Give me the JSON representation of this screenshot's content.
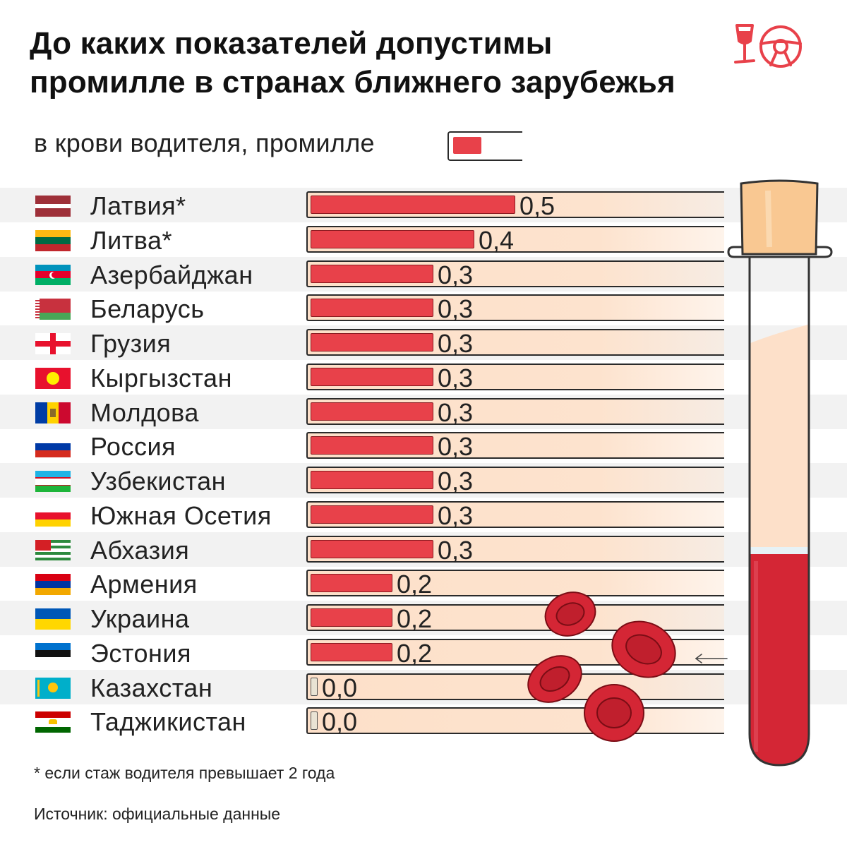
{
  "title": {
    "line1": "До каких показателей допустимы",
    "line2": "промилле в странах ближнего зарубежья"
  },
  "logo": {
    "icon": "wine-glass-steering-wheel-icon",
    "color": "#e8414a"
  },
  "legend": {
    "label": "в крови водителя, промилле",
    "swatch_color": "#e8414a"
  },
  "colors": {
    "bar": "#e8414a",
    "track": "#fde0c9",
    "row_alt": "#f2f2f2"
  },
  "chart_data": {
    "type": "bar",
    "orientation": "horizontal",
    "title": "До каких показателей допустимы промилле в странах ближнего зарубежья",
    "xlabel": "в крови водителя, промилле",
    "xlim": [
      0,
      1.0
    ],
    "categories": [
      "Латвия*",
      "Литва*",
      "Азербайджан",
      "Беларусь",
      "Грузия",
      "Кыргызстан",
      "Молдова",
      "Россия",
      "Узбекистан",
      "Южная Осетия",
      "Абхазия",
      "Армения",
      "Украина",
      "Эстония",
      "Казахстан",
      "Таджикистан"
    ],
    "values": [
      0.5,
      0.4,
      0.3,
      0.3,
      0.3,
      0.3,
      0.3,
      0.3,
      0.3,
      0.3,
      0.3,
      0.2,
      0.2,
      0.2,
      0.0,
      0.0
    ],
    "value_labels": [
      "0,5",
      "0,4",
      "0,3",
      "0,3",
      "0,3",
      "0,3",
      "0,3",
      "0,3",
      "0,3",
      "0,3",
      "0,3",
      "0,2",
      "0,2",
      "0,2",
      "0,0",
      "0,0"
    ],
    "flags": [
      "latvia-flag-icon",
      "lithuania-flag-icon",
      "azerbaijan-flag-icon",
      "belarus-flag-icon",
      "georgia-flag-icon",
      "kyrgyzstan-flag-icon",
      "moldova-flag-icon",
      "russia-flag-icon",
      "uzbekistan-flag-icon",
      "south-ossetia-flag-icon",
      "abkhazia-flag-icon",
      "armenia-flag-icon",
      "ukraine-flag-icon",
      "estonia-flag-icon",
      "kazakhstan-flag-icon",
      "tajikistan-flag-icon"
    ],
    "grid": false,
    "legend_position": "top-left"
  },
  "illustration": {
    "tube": "test-tube-icon",
    "cells": "blood-cells-icon",
    "arrow": "arrow-left-icon"
  },
  "footnote": "* если стаж водителя превышает 2 года",
  "source": "Источник: официальные данные"
}
